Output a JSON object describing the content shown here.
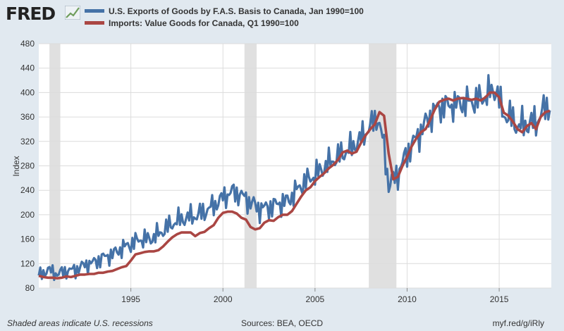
{
  "brand": {
    "logo_text": "FRED",
    "logo_icon": "line-chart-icon"
  },
  "footer": {
    "note": "Shaded areas indicate U.S. recessions",
    "sources": "Sources: BEA, OECD",
    "link": "myf.red/g/iRly"
  },
  "chart_data": {
    "type": "line",
    "title": "",
    "xlabel": "",
    "ylabel": "Index",
    "xlim": [
      1990,
      2017.83
    ],
    "ylim": [
      80,
      480
    ],
    "yticks": [
      80,
      120,
      160,
      200,
      240,
      280,
      320,
      360,
      400,
      440,
      480
    ],
    "xticks": [
      1995,
      2000,
      2005,
      2010,
      2015
    ],
    "grid": true,
    "legend_position": "top",
    "recessions": [
      [
        1990.58,
        1991.17
      ],
      [
        2001.17,
        2001.83
      ],
      [
        2007.92,
        2009.42
      ]
    ],
    "series": [
      {
        "name": "U.S. Exports of Goods by F.A.S. Basis to Canada, Jan 1990=100",
        "color": "#4572a7",
        "frequency": "monthly",
        "anchors": [
          [
            1990.0,
            100
          ],
          [
            1990.5,
            110
          ],
          [
            1991.0,
            103
          ],
          [
            1991.5,
            108
          ],
          [
            1992.0,
            110
          ],
          [
            1992.5,
            118
          ],
          [
            1993.0,
            122
          ],
          [
            1993.5,
            130
          ],
          [
            1994.0,
            135
          ],
          [
            1994.5,
            145
          ],
          [
            1995.0,
            152
          ],
          [
            1995.5,
            160
          ],
          [
            1996.0,
            160
          ],
          [
            1996.5,
            168
          ],
          [
            1997.0,
            180
          ],
          [
            1997.5,
            190
          ],
          [
            1998.0,
            195
          ],
          [
            1998.5,
            198
          ],
          [
            1999.0,
            205
          ],
          [
            1999.5,
            215
          ],
          [
            2000.0,
            228
          ],
          [
            2000.5,
            238
          ],
          [
            2001.0,
            232
          ],
          [
            2001.5,
            220
          ],
          [
            2002.0,
            210
          ],
          [
            2002.5,
            212
          ],
          [
            2003.0,
            218
          ],
          [
            2003.5,
            222
          ],
          [
            2004.0,
            240
          ],
          [
            2004.5,
            255
          ],
          [
            2005.0,
            265
          ],
          [
            2005.5,
            278
          ],
          [
            2006.0,
            290
          ],
          [
            2006.5,
            300
          ],
          [
            2007.0,
            310
          ],
          [
            2007.5,
            325
          ],
          [
            2008.0,
            345
          ],
          [
            2008.4,
            360
          ],
          [
            2008.7,
            320
          ],
          [
            2009.0,
            250
          ],
          [
            2009.4,
            262
          ],
          [
            2009.8,
            288
          ],
          [
            2010.2,
            312
          ],
          [
            2010.6,
            330
          ],
          [
            2011.0,
            350
          ],
          [
            2011.5,
            372
          ],
          [
            2012.0,
            378
          ],
          [
            2012.5,
            380
          ],
          [
            2013.0,
            383
          ],
          [
            2013.5,
            385
          ],
          [
            2014.0,
            390
          ],
          [
            2014.5,
            400
          ],
          [
            2014.85,
            405
          ],
          [
            2015.2,
            365
          ],
          [
            2015.6,
            360
          ],
          [
            2016.0,
            345
          ],
          [
            2016.5,
            348
          ],
          [
            2017.0,
            352
          ],
          [
            2017.5,
            375
          ],
          [
            2017.83,
            380
          ]
        ],
        "noise_amplitude": [
          [
            1990.0,
            10
          ],
          [
            1998.0,
            16
          ],
          [
            2004.0,
            18
          ],
          [
            2010.0,
            22
          ],
          [
            2017.83,
            24
          ]
        ]
      },
      {
        "name": "Imports: Value Goods for Canada, Q1 1990=100",
        "color": "#aa4643",
        "frequency": "quarterly",
        "points": [
          [
            1990.0,
            100
          ],
          [
            1990.25,
            98
          ],
          [
            1990.5,
            97
          ],
          [
            1990.75,
            97
          ],
          [
            1991.0,
            96
          ],
          [
            1991.25,
            97
          ],
          [
            1991.5,
            99
          ],
          [
            1991.75,
            98
          ],
          [
            1992.0,
            100
          ],
          [
            1992.25,
            102
          ],
          [
            1992.5,
            102
          ],
          [
            1992.75,
            103
          ],
          [
            1993.0,
            103
          ],
          [
            1993.25,
            105
          ],
          [
            1993.5,
            105
          ],
          [
            1993.75,
            107
          ],
          [
            1994.0,
            108
          ],
          [
            1994.25,
            111
          ],
          [
            1994.5,
            114
          ],
          [
            1994.75,
            116
          ],
          [
            1995.0,
            125
          ],
          [
            1995.25,
            135
          ],
          [
            1995.5,
            137
          ],
          [
            1995.75,
            139
          ],
          [
            1996.0,
            140
          ],
          [
            1996.25,
            140
          ],
          [
            1996.5,
            142
          ],
          [
            1996.75,
            148
          ],
          [
            1997.0,
            156
          ],
          [
            1997.25,
            163
          ],
          [
            1997.5,
            168
          ],
          [
            1997.75,
            171
          ],
          [
            1998.0,
            171
          ],
          [
            1998.25,
            171
          ],
          [
            1998.5,
            165
          ],
          [
            1998.75,
            170
          ],
          [
            1999.0,
            172
          ],
          [
            1999.25,
            178
          ],
          [
            1999.5,
            183
          ],
          [
            1999.75,
            195
          ],
          [
            2000.0,
            203
          ],
          [
            2000.25,
            205
          ],
          [
            2000.5,
            205
          ],
          [
            2000.75,
            202
          ],
          [
            2001.0,
            195
          ],
          [
            2001.25,
            192
          ],
          [
            2001.5,
            180
          ],
          [
            2001.75,
            176
          ],
          [
            2002.0,
            178
          ],
          [
            2002.25,
            187
          ],
          [
            2002.5,
            191
          ],
          [
            2002.75,
            190
          ],
          [
            2003.0,
            196
          ],
          [
            2003.25,
            200
          ],
          [
            2003.5,
            200
          ],
          [
            2003.75,
            206
          ],
          [
            2004.0,
            218
          ],
          [
            2004.25,
            230
          ],
          [
            2004.5,
            240
          ],
          [
            2004.75,
            245
          ],
          [
            2005.0,
            255
          ],
          [
            2005.25,
            262
          ],
          [
            2005.5,
            268
          ],
          [
            2005.75,
            276
          ],
          [
            2006.0,
            282
          ],
          [
            2006.25,
            290
          ],
          [
            2006.5,
            302
          ],
          [
            2006.75,
            305
          ],
          [
            2007.0,
            300
          ],
          [
            2007.25,
            303
          ],
          [
            2007.5,
            318
          ],
          [
            2007.75,
            330
          ],
          [
            2008.0,
            340
          ],
          [
            2008.25,
            348
          ],
          [
            2008.5,
            368
          ],
          [
            2008.75,
            362
          ],
          [
            2009.0,
            300
          ],
          [
            2009.25,
            258
          ],
          [
            2009.5,
            262
          ],
          [
            2009.75,
            280
          ],
          [
            2010.0,
            295
          ],
          [
            2010.25,
            312
          ],
          [
            2010.5,
            325
          ],
          [
            2010.75,
            335
          ],
          [
            2011.0,
            340
          ],
          [
            2011.25,
            355
          ],
          [
            2011.5,
            372
          ],
          [
            2011.75,
            385
          ],
          [
            2012.0,
            388
          ],
          [
            2012.25,
            390
          ],
          [
            2012.5,
            387
          ],
          [
            2012.75,
            390
          ],
          [
            2013.0,
            391
          ],
          [
            2013.25,
            390
          ],
          [
            2013.5,
            388
          ],
          [
            2013.75,
            390
          ],
          [
            2014.0,
            387
          ],
          [
            2014.25,
            392
          ],
          [
            2014.5,
            400
          ],
          [
            2014.75,
            400
          ],
          [
            2015.0,
            392
          ],
          [
            2015.25,
            367
          ],
          [
            2015.5,
            362
          ],
          [
            2015.75,
            352
          ],
          [
            2016.0,
            340
          ],
          [
            2016.25,
            335
          ],
          [
            2016.5,
            345
          ],
          [
            2016.75,
            350
          ],
          [
            2017.0,
            340
          ],
          [
            2017.25,
            360
          ],
          [
            2017.5,
            368
          ],
          [
            2017.75,
            370
          ]
        ]
      }
    ]
  }
}
